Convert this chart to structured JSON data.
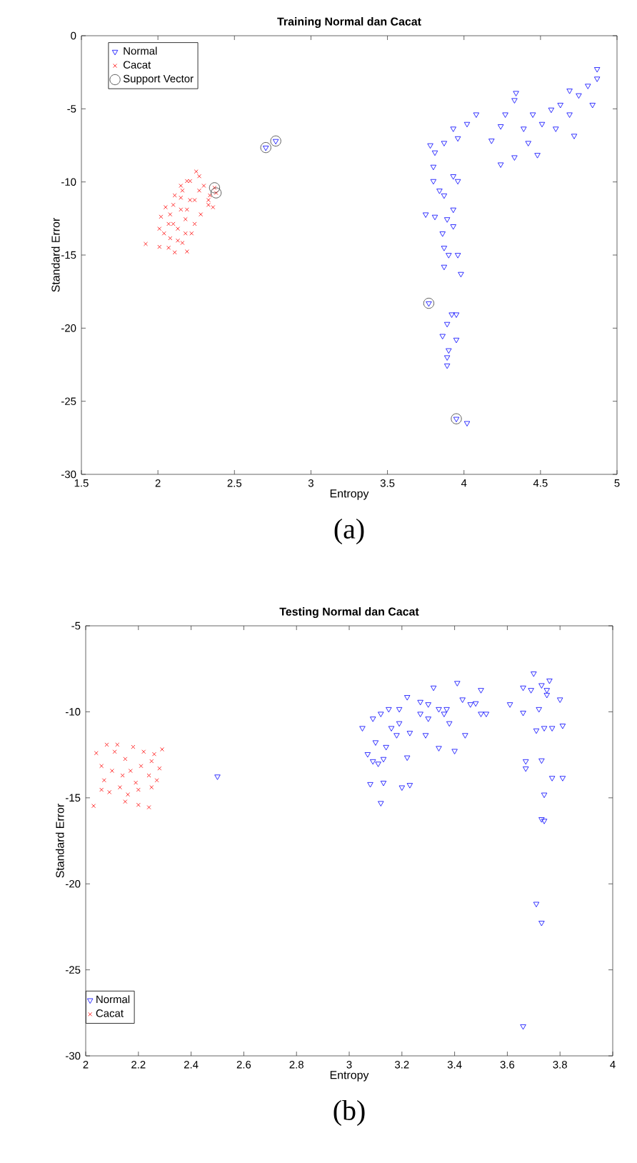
{
  "chart_data": [
    {
      "type": "scatter",
      "title": "Training Normal dan Cacat",
      "xlabel": "Entropy",
      "ylabel": "Standard Error",
      "xlim": [
        1.5,
        5
      ],
      "ylim": [
        -30,
        0
      ],
      "xticks": [
        1.5,
        2,
        2.5,
        3,
        3.5,
        4,
        4.5,
        5
      ],
      "yticks": [
        -30,
        -25,
        -20,
        -15,
        -10,
        -5,
        0
      ],
      "legend": "top left",
      "annotations": [
        "(a)"
      ],
      "series": [
        {
          "name": "Normal",
          "color": "#0000ff",
          "marker": "triangle",
          "x": [
            4.87,
            4.81,
            4.75,
            4.69,
            4.63,
            4.57,
            4.51,
            4.45,
            4.39,
            4.33,
            4.34,
            4.27,
            4.24,
            4.18,
            4.24,
            4.33,
            4.48,
            4.72,
            4.84,
            4.87,
            4.69,
            4.6,
            4.42,
            4.08,
            4.02,
            3.96,
            3.93,
            3.87,
            3.81,
            3.78,
            3.8,
            3.8,
            3.84,
            3.93,
            3.96,
            3.87,
            3.75,
            3.81,
            3.89,
            3.93,
            3.86,
            3.93,
            3.87,
            3.9,
            3.96,
            3.87,
            3.98,
            3.92,
            3.95,
            3.89,
            3.86,
            3.95,
            3.9,
            3.89,
            3.89,
            4.02,
            3.77,
            3.95,
            2.705,
            2.77
          ],
          "values": [
            -2.28,
            -3.42,
            -4.07,
            -3.75,
            -4.72,
            -5.05,
            -6.03,
            -5.38,
            -6.35,
            -4.4,
            -3.91,
            -5.38,
            -6.19,
            -7.17,
            -8.8,
            -8.31,
            -8.15,
            -6.84,
            -4.72,
            -2.93,
            -5.38,
            -6.35,
            -7.33,
            -5.38,
            -6.03,
            -7.01,
            -6.35,
            -7.33,
            -7.98,
            -7.49,
            -8.96,
            -9.94,
            -10.59,
            -9.61,
            -9.94,
            -10.92,
            -12.22,
            -12.38,
            -12.55,
            -11.89,
            -13.52,
            -13.03,
            -14.5,
            -14.99,
            -14.99,
            -15.8,
            -16.29,
            -19.06,
            -19.06,
            -19.71,
            -20.53,
            -20.79,
            -21.51,
            -21.99,
            -22.55,
            -26.49,
            -18.3,
            -26.2,
            -7.65,
            -7.2
          ]
        },
        {
          "name": "Cacat",
          "color": "#ff0000",
          "marker": "cross",
          "x": [
            2.25,
            2.19,
            2.15,
            2.11,
            2.1,
            2.08,
            2.07,
            2.04,
            2.01,
            2.02,
            2.05,
            2.15,
            2.21,
            2.27,
            2.3,
            2.34,
            2.36,
            2.33,
            2.24,
            2.18,
            2.13,
            2.07,
            2.01,
            1.92,
            2.11,
            2.19,
            2.16,
            2.22,
            2.28,
            2.18,
            2.13,
            2.08,
            2.15,
            2.21,
            2.27,
            2.1,
            2.19,
            2.24,
            2.16,
            2.33,
            2.37,
            2.38
          ],
          "values": [
            -9.29,
            -9.94,
            -10.26,
            -10.92,
            -11.57,
            -12.22,
            -12.87,
            -13.52,
            -13.2,
            -12.38,
            -11.73,
            -11.89,
            -11.24,
            -10.59,
            -10.26,
            -10.92,
            -11.73,
            -11.57,
            -12.87,
            -13.52,
            -14.01,
            -14.5,
            -14.44,
            -14.24,
            -14.82,
            -14.76,
            -14.17,
            -13.52,
            -12.22,
            -12.55,
            -13.2,
            -13.85,
            -11.08,
            -9.94,
            -9.61,
            -12.87,
            -11.89,
            -11.24,
            -10.59,
            -11.24,
            -10.4,
            -10.75
          ]
        },
        {
          "name": "Support Vector",
          "color": "#333333",
          "marker": "circle",
          "x": [
            2.705,
            2.77,
            2.37,
            2.38,
            3.77,
            3.95
          ],
          "values": [
            -7.65,
            -7.2,
            -10.4,
            -10.75,
            -18.3,
            -26.2
          ]
        }
      ]
    },
    {
      "type": "scatter",
      "title": "Testing Normal dan Cacat",
      "xlabel": "Entropy",
      "ylabel": "Standard Error",
      "xlim": [
        2,
        4
      ],
      "ylim": [
        -30,
        -5
      ],
      "xticks": [
        2,
        2.2,
        2.4,
        2.6,
        2.8,
        3,
        3.2,
        3.4,
        3.6,
        3.8,
        4
      ],
      "yticks": [
        -30,
        -25,
        -20,
        -15,
        -10,
        -5
      ],
      "legend": "bottom left",
      "annotations": [
        "(b)"
      ],
      "series": [
        {
          "name": "Normal",
          "color": "#0000ff",
          "marker": "triangle",
          "x": [
            3.05,
            3.09,
            3.12,
            3.15,
            3.19,
            3.19,
            3.23,
            3.07,
            3.09,
            3.11,
            3.13,
            3.08,
            3.13,
            3.12,
            3.2,
            3.23,
            3.22,
            3.22,
            3.27,
            3.29,
            3.3,
            3.34,
            3.32,
            3.34,
            3.37,
            3.38,
            3.4,
            3.41,
            3.44,
            3.43,
            3.46,
            3.48,
            3.5,
            3.52,
            3.5,
            3.61,
            3.66,
            3.66,
            3.7,
            3.73,
            3.75,
            3.76,
            3.8,
            3.81,
            3.71,
            3.74,
            3.77,
            3.67,
            3.73,
            3.67,
            3.77,
            3.81,
            3.74,
            3.73,
            3.74,
            3.71,
            3.73,
            3.66,
            3.16,
            3.1,
            3.14,
            3.18,
            3.27,
            3.3,
            3.36,
            3.72,
            3.69,
            3.75,
            2.5
          ],
          "values": [
            -10.94,
            -10.39,
            -10.11,
            -9.84,
            -9.84,
            -10.66,
            -11.22,
            -12.46,
            -12.87,
            -13.01,
            -12.74,
            -14.2,
            -14.12,
            -15.3,
            -14.39,
            -14.25,
            -12.65,
            -9.14,
            -10.11,
            -11.35,
            -9.56,
            -9.84,
            -8.59,
            -12.1,
            -9.84,
            -10.66,
            -12.27,
            -8.32,
            -11.35,
            -9.28,
            -9.56,
            -9.5,
            -8.73,
            -10.11,
            -10.11,
            -9.56,
            -8.59,
            -10.05,
            -7.77,
            -8.45,
            -9.01,
            -8.18,
            -9.28,
            -10.8,
            -11.08,
            -10.94,
            -10.94,
            -12.87,
            -12.82,
            -13.29,
            -13.84,
            -13.84,
            -14.81,
            -16.24,
            -16.33,
            -21.16,
            -22.26,
            -28.28,
            -10.94,
            -11.77,
            -12.04,
            -11.35,
            -9.42,
            -10.39,
            -10.11,
            -9.84,
            -8.73,
            -8.73,
            -13.76
          ]
        },
        {
          "name": "Cacat",
          "color": "#ff0000",
          "marker": "cross",
          "x": [
            2.04,
            2.03,
            2.08,
            2.06,
            2.07,
            2.11,
            2.15,
            2.18,
            2.22,
            2.25,
            2.29,
            2.28,
            2.24,
            2.2,
            2.16,
            2.13,
            2.1,
            2.14,
            2.17,
            2.21,
            2.25,
            2.27,
            2.24,
            2.2,
            2.15,
            2.09,
            2.06,
            2.12,
            2.19,
            2.26
          ],
          "values": [
            -12.4,
            -15.47,
            -11.91,
            -13.15,
            -13.98,
            -12.32,
            -12.74,
            -12.04,
            -12.32,
            -12.87,
            -12.18,
            -13.29,
            -13.7,
            -14.53,
            -14.81,
            -14.39,
            -13.43,
            -13.7,
            -13.43,
            -13.15,
            -14.39,
            -13.98,
            -15.55,
            -15.41,
            -15.22,
            -14.67,
            -14.53,
            -11.91,
            -14.12,
            -12.46
          ]
        }
      ]
    }
  ]
}
